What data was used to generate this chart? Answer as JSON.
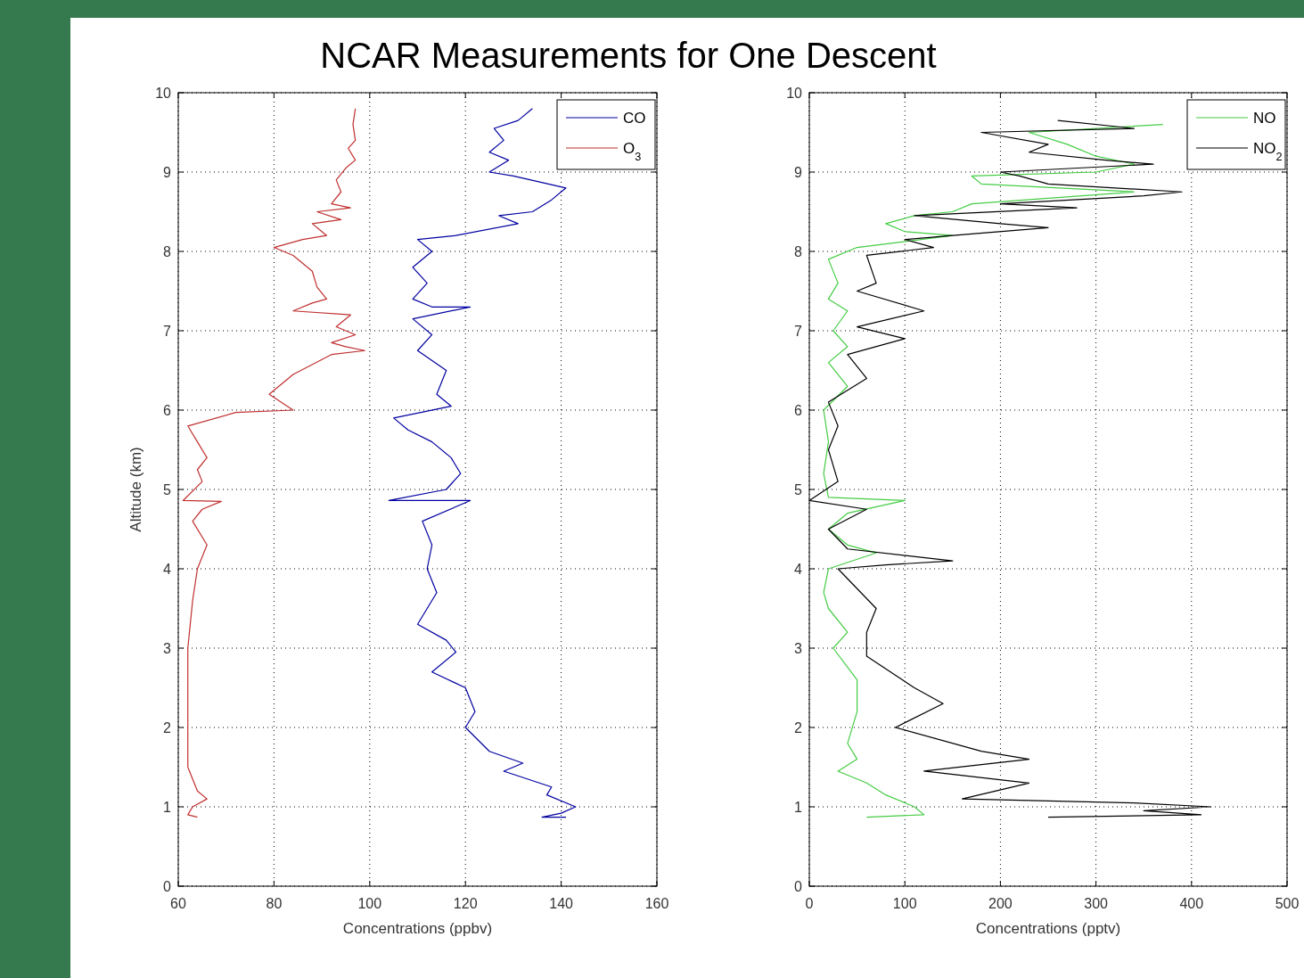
{
  "chart_data": [
    {
      "type": "line",
      "title": "NCAR Measurements for One Descent",
      "xlabel": "Concentrations (ppbv)",
      "ylabel": "Altitude (km)",
      "xlim": [
        60,
        160
      ],
      "xticks": [
        60,
        80,
        100,
        120,
        140,
        160
      ],
      "ylim": [
        0,
        10
      ],
      "yticks": [
        0,
        1,
        2,
        3,
        4,
        5,
        6,
        7,
        8,
        9,
        10
      ],
      "grid": true,
      "legend": "top right",
      "series": [
        {
          "name": "CO",
          "color": "#0000a0",
          "x": [
            134,
            131,
            126,
            128,
            125,
            129,
            125,
            130,
            141,
            138,
            134,
            127,
            131,
            118,
            110,
            113,
            109,
            112,
            109,
            113,
            121,
            109,
            113,
            110,
            116,
            114,
            117,
            105,
            108,
            113,
            117,
            119,
            116,
            104,
            121,
            111,
            113,
            112,
            114,
            110,
            116,
            118,
            113,
            120,
            122,
            120,
            125,
            132,
            128,
            138,
            137,
            143,
            140,
            136,
            141
          ],
          "values": [
            9.8,
            9.65,
            9.55,
            9.4,
            9.25,
            9.15,
            9.0,
            8.95,
            8.8,
            8.65,
            8.5,
            8.45,
            8.35,
            8.2,
            8.15,
            8.0,
            7.8,
            7.6,
            7.4,
            7.3,
            7.3,
            7.15,
            6.95,
            6.75,
            6.5,
            6.2,
            6.05,
            5.9,
            5.75,
            5.6,
            5.4,
            5.2,
            5.0,
            4.86,
            4.86,
            4.6,
            4.3,
            4.0,
            3.7,
            3.3,
            3.1,
            2.95,
            2.7,
            2.5,
            2.2,
            2.0,
            1.7,
            1.55,
            1.45,
            1.25,
            1.15,
            1.0,
            0.92,
            0.87,
            0.87
          ]
        },
        {
          "name": "O$_{3}$",
          "color": "#c03030",
          "x": [
            97,
            96.5,
            97,
            95.5,
            97,
            95,
            93,
            94,
            92,
            96,
            89,
            94,
            88,
            91,
            86,
            80,
            84,
            88,
            89,
            91,
            88,
            84,
            96,
            93,
            97,
            92,
            95,
            99,
            92,
            84,
            79,
            84,
            72,
            62,
            64,
            66,
            64,
            65,
            61,
            69,
            65,
            63,
            66,
            64,
            63,
            62,
            62,
            62,
            62,
            64,
            66,
            63,
            62,
            64
          ],
          "values": [
            9.8,
            9.6,
            9.4,
            9.3,
            9.15,
            9.05,
            8.9,
            8.75,
            8.6,
            8.55,
            8.5,
            8.4,
            8.35,
            8.2,
            8.15,
            8.05,
            7.95,
            7.75,
            7.55,
            7.4,
            7.35,
            7.25,
            7.2,
            7.05,
            6.95,
            6.85,
            6.8,
            6.75,
            6.7,
            6.45,
            6.2,
            6.0,
            5.97,
            5.8,
            5.6,
            5.4,
            5.25,
            5.1,
            4.86,
            4.85,
            4.75,
            4.6,
            4.3,
            4.0,
            3.6,
            3.0,
            2.8,
            2.0,
            1.5,
            1.2,
            1.1,
            1.0,
            0.9,
            0.87
          ]
        }
      ]
    },
    {
      "type": "line",
      "xlabel": "Concentrations (pptv)",
      "xlim": [
        0,
        500
      ],
      "xticks": [
        0,
        100,
        200,
        300,
        400,
        500
      ],
      "ylim": [
        0,
        10
      ],
      "yticks": [
        0,
        1,
        2,
        3,
        4,
        5,
        6,
        7,
        8,
        9,
        10
      ],
      "grid": true,
      "legend": "top right",
      "series": [
        {
          "name": "NO",
          "color": "#44cc44",
          "x": [
            370,
            230,
            270,
            300,
            340,
            300,
            170,
            180,
            340,
            170,
            150,
            110,
            80,
            100,
            150,
            50,
            20,
            30,
            20,
            40,
            25,
            40,
            20,
            40,
            15,
            20,
            15,
            20,
            100,
            40,
            20,
            40,
            70,
            20,
            15,
            20,
            40,
            25,
            50,
            50,
            40,
            50,
            30,
            60,
            80,
            110,
            120,
            60
          ],
          "values": [
            9.6,
            9.5,
            9.35,
            9.2,
            9.1,
            9.0,
            8.95,
            8.85,
            8.75,
            8.6,
            8.5,
            8.45,
            8.35,
            8.25,
            8.2,
            8.05,
            7.9,
            7.6,
            7.4,
            7.25,
            7.0,
            6.8,
            6.6,
            6.3,
            6.0,
            5.6,
            5.2,
            4.9,
            4.86,
            4.7,
            4.5,
            4.3,
            4.2,
            4.0,
            3.7,
            3.5,
            3.2,
            3.0,
            2.6,
            2.2,
            1.8,
            1.6,
            1.45,
            1.3,
            1.15,
            1.0,
            0.9,
            0.87
          ]
        },
        {
          "name": "NO$_{2}$",
          "color": "#000000",
          "x": [
            260,
            340,
            180,
            250,
            230,
            310,
            360,
            200,
            220,
            250,
            390,
            350,
            200,
            280,
            110,
            200,
            250,
            150,
            100,
            130,
            60,
            70,
            50,
            120,
            50,
            100,
            40,
            60,
            20,
            30,
            20,
            30,
            0,
            60,
            20,
            40,
            150,
            80,
            30,
            70,
            60,
            60,
            110,
            140,
            90,
            180,
            230,
            120,
            230,
            160,
            340,
            420,
            350,
            410,
            250
          ],
          "values": [
            9.65,
            9.55,
            9.5,
            9.35,
            9.25,
            9.15,
            9.1,
            9.0,
            8.95,
            8.85,
            8.75,
            8.7,
            8.6,
            8.55,
            8.45,
            8.35,
            8.3,
            8.2,
            8.15,
            8.05,
            7.95,
            7.6,
            7.5,
            7.25,
            7.05,
            6.9,
            6.7,
            6.4,
            6.1,
            5.8,
            5.5,
            5.1,
            4.86,
            4.75,
            4.5,
            4.25,
            4.1,
            4.05,
            4.0,
            3.5,
            3.2,
            2.9,
            2.5,
            2.3,
            2.0,
            1.7,
            1.6,
            1.45,
            1.3,
            1.1,
            1.05,
            1.0,
            0.95,
            0.9,
            0.87
          ]
        }
      ]
    }
  ]
}
